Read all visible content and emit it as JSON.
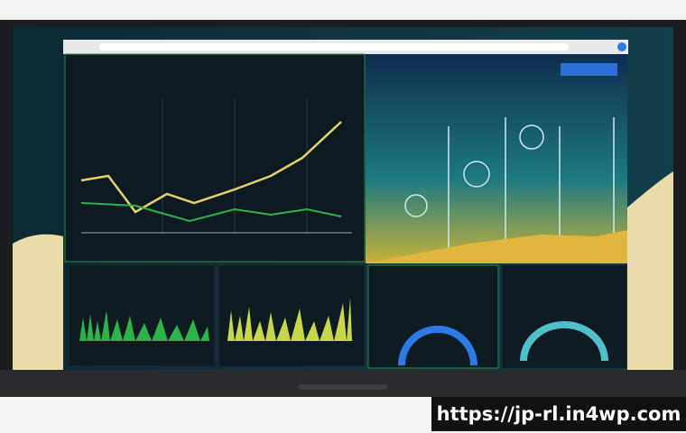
{
  "watermark": "https://jp-rl.in4wp.com"
}
